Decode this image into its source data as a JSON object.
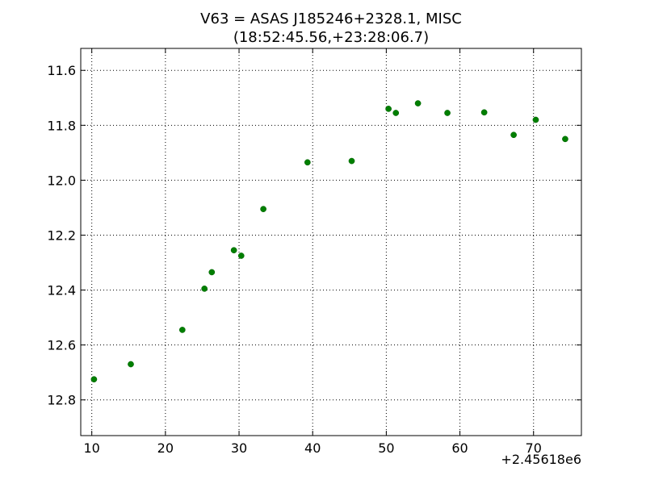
{
  "chart_data": {
    "type": "scatter",
    "title_line1": "V63 = ASAS J185246+2328.1, MISC",
    "title_line2": "(18:52:45.56,+23:28:06.7)",
    "xlabel": "",
    "ylabel": "",
    "x_offset_label": "+2.45618e6",
    "xlim": [
      8.5,
      76.5
    ],
    "ylim": [
      12.93,
      11.52
    ],
    "y_inverted": true,
    "grid": true,
    "x_ticks": [
      10,
      20,
      30,
      40,
      50,
      60,
      70
    ],
    "x_tick_labels": [
      "10",
      "20",
      "30",
      "40",
      "50",
      "60",
      "70"
    ],
    "y_ticks": [
      11.6,
      11.8,
      12.0,
      12.2,
      12.4,
      12.6,
      12.8
    ],
    "y_tick_labels": [
      "11.6",
      "11.8",
      "12.0",
      "12.2",
      "12.4",
      "12.6",
      "12.8"
    ],
    "marker_color": "#007f00",
    "points": [
      {
        "x": 10.3,
        "y": 12.725
      },
      {
        "x": 15.3,
        "y": 12.67
      },
      {
        "x": 22.3,
        "y": 12.545
      },
      {
        "x": 25.3,
        "y": 12.395
      },
      {
        "x": 26.3,
        "y": 12.335
      },
      {
        "x": 29.3,
        "y": 12.255
      },
      {
        "x": 30.3,
        "y": 12.275
      },
      {
        "x": 33.3,
        "y": 12.105
      },
      {
        "x": 39.3,
        "y": 11.935
      },
      {
        "x": 45.3,
        "y": 11.93
      },
      {
        "x": 50.3,
        "y": 11.74
      },
      {
        "x": 51.3,
        "y": 11.755
      },
      {
        "x": 54.3,
        "y": 11.72
      },
      {
        "x": 58.3,
        "y": 11.755
      },
      {
        "x": 63.3,
        "y": 11.753
      },
      {
        "x": 67.3,
        "y": 11.835
      },
      {
        "x": 70.3,
        "y": 11.78
      },
      {
        "x": 74.3,
        "y": 11.85
      }
    ]
  }
}
